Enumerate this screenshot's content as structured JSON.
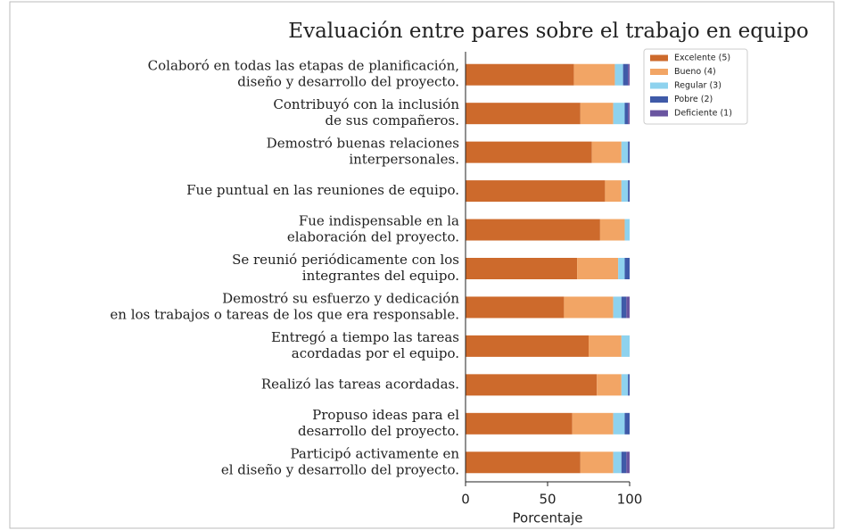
{
  "chart_data": {
    "type": "stacked_barh",
    "title": "Evaluación entre pares sobre el trabajo en equipo",
    "xlabel": "Porcentaje",
    "categories": [
      [
        "Colaboró en todas las etapas de planificación,",
        "diseño y desarrollo del proyecto."
      ],
      [
        "Contribuyó con la inclusión",
        "de sus compañeros."
      ],
      [
        "Demostró buenas relaciones",
        "interpersonales."
      ],
      [
        "Fue puntual en las reuniones de equipo."
      ],
      [
        "Fue indispensable en la",
        "elaboración del proyecto."
      ],
      [
        "Se reunió periódicamente con los",
        "integrantes del equipo."
      ],
      [
        "Demostró su esfuerzo y dedicación",
        "en los trabajos o tareas de los que era responsable."
      ],
      [
        "Entregó a tiempo las tareas",
        "acordadas por el equipo."
      ],
      [
        "Realizó las tareas acordadas."
      ],
      [
        "Propuso ideas para el",
        "desarrollo del proyecto."
      ],
      [
        "Participó activamente en",
        "el diseño y desarrollo del proyecto."
      ]
    ],
    "series": [
      {
        "name": "Excelente (5)",
        "color": "#cd6a2c",
        "values": [
          66,
          70,
          77,
          85,
          82,
          68,
          60,
          75,
          80,
          65,
          70
        ]
      },
      {
        "name": "Bueno (4)",
        "color": "#f2a565",
        "values": [
          25,
          20,
          18,
          10,
          15,
          25,
          30,
          20,
          15,
          25,
          20
        ]
      },
      {
        "name": "Regular (3)",
        "color": "#8ed2ee",
        "values": [
          5,
          7,
          4,
          4,
          3,
          4,
          5,
          5,
          4,
          7,
          5
        ]
      },
      {
        "name": "Pobre (2)",
        "color": "#3f5aa8",
        "values": [
          3,
          2,
          1,
          1,
          0,
          3,
          3,
          0,
          1,
          3,
          3
        ]
      },
      {
        "name": "Deficiente (1)",
        "color": "#6a55a0",
        "values": [
          1,
          1,
          0,
          0,
          0,
          0,
          2,
          0,
          0,
          0,
          2
        ]
      }
    ],
    "xlim": [
      0,
      100
    ],
    "xticks": [
      0,
      50,
      100
    ],
    "legend": "upper right"
  }
}
